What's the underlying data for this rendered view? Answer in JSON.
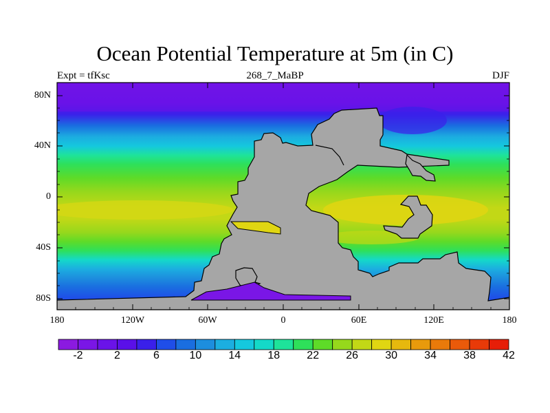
{
  "title": "Ocean Potential Temperature at 5m (in C)",
  "left_subtitle": "Expt = tfKsc",
  "center_subtitle": "268_7_MaBP",
  "right_subtitle": "DJF",
  "lat_ticks": [
    "80N",
    "40N",
    "0",
    "40S",
    "80S"
  ],
  "lon_ticks": [
    "180",
    "120W",
    "60W",
    "0",
    "60E",
    "120E",
    "180"
  ],
  "colorbar": {
    "labels": [
      "-2",
      "2",
      "6",
      "10",
      "14",
      "18",
      "22",
      "26",
      "30",
      "34",
      "38",
      "42"
    ],
    "colors": [
      "#8b1ae0",
      "#7a16e6",
      "#6a13e8",
      "#5a10e8",
      "#3a20ea",
      "#1f4ee8",
      "#1a6ee0",
      "#1d8ede",
      "#1caee0",
      "#15c8de",
      "#14d9c8",
      "#1ee39a",
      "#2ee05a",
      "#5edb28",
      "#96d81c",
      "#c2d816",
      "#e0d612",
      "#e6b80e",
      "#e89a0c",
      "#ea7a0a",
      "#ea5a0a",
      "#e83a08",
      "#e61e08"
    ]
  },
  "map_colors": {
    "land": "#a6a6a6",
    "coast": "#000000",
    "frame": "#000000"
  }
}
